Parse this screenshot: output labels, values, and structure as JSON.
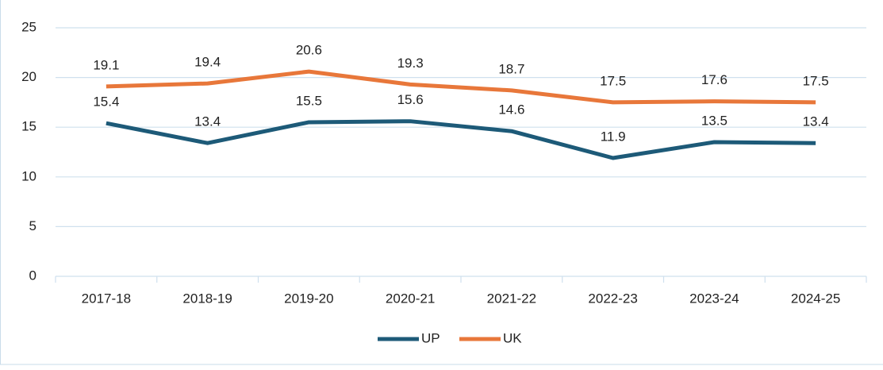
{
  "chart_data": {
    "type": "line",
    "categories": [
      "2017-18",
      "2018-19",
      "2019-20",
      "2020-21",
      "2021-22",
      "2022-23",
      "2023-24",
      "2024-25"
    ],
    "series": [
      {
        "name": "UP",
        "color": "#1d5a78",
        "values": [
          15.4,
          13.4,
          15.5,
          15.6,
          14.6,
          11.9,
          13.5,
          13.4
        ]
      },
      {
        "name": "UK",
        "color": "#e8773a",
        "values": [
          19.1,
          19.4,
          20.6,
          19.3,
          18.7,
          17.5,
          17.6,
          17.5
        ]
      }
    ],
    "ylim": [
      0,
      25
    ],
    "yticks": [
      0,
      5,
      10,
      15,
      20,
      25
    ],
    "grid": true,
    "legend": "bottom"
  }
}
